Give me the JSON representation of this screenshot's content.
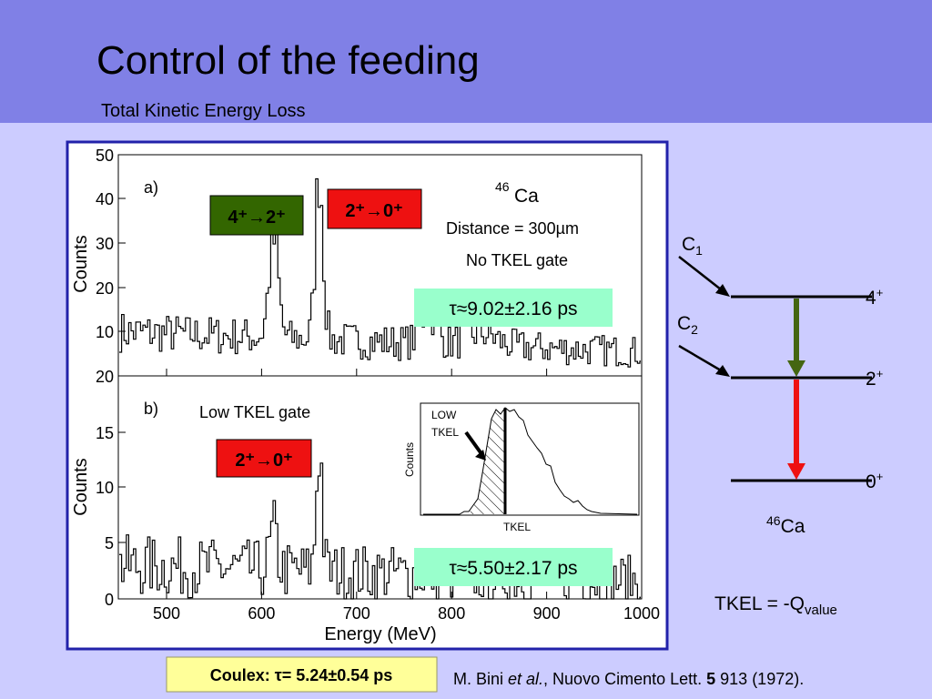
{
  "header": {
    "title": "Control of the feeding",
    "subtitle": "Total Kinetic Energy Loss"
  },
  "figure": {
    "panel_a": {
      "label": "a)",
      "ylabel": "Counts",
      "yticks": [
        "50",
        "40",
        "30",
        "20",
        "10"
      ],
      "isotope": {
        "mass": "46",
        "symbol": "Ca"
      },
      "distance": "Distance = 300µm",
      "gate": "No TKEL gate",
      "transitions": [
        "4⁺→2⁺",
        "2⁺→0⁺"
      ],
      "lifetime": "τ≈9.02±2.16 ps"
    },
    "panel_b": {
      "label": "b)",
      "ylabel": "Counts",
      "yticks": [
        "20",
        "15",
        "10",
        "5",
        "0"
      ],
      "gate": "Low TKEL gate",
      "transition": "2⁺→0⁺",
      "lifetime": "τ≈5.50±2.17 ps"
    },
    "xticks": [
      "500",
      "600",
      "700",
      "800",
      "900",
      "1000"
    ],
    "xlabel": "Energy (MeV)",
    "inset": {
      "labels": [
        "LOW",
        "TKEL"
      ],
      "ylabel": "Counts",
      "xlabel": "TKEL"
    }
  },
  "level_scheme": {
    "beams": [
      {
        "main": "C",
        "sub": "1"
      },
      {
        "main": "C",
        "sub": "2"
      }
    ],
    "levels": [
      {
        "spin": "4",
        "parity": "+"
      },
      {
        "spin": "2",
        "parity": "+"
      },
      {
        "spin": "0",
        "parity": "+"
      }
    ],
    "nucleus": {
      "mass": "46",
      "symbol": "Ca"
    },
    "relation": {
      "main": "TKEL = -Q",
      "sub": "value"
    }
  },
  "footer": {
    "result": "Coulex: τ= 5.24±0.54 ps",
    "reference": {
      "authors": "M. Bini ",
      "etal": "et al.",
      "journal": ", Nuovo Cimento Lett. ",
      "volume": "5",
      "rest": " 913 (1972)."
    }
  }
}
